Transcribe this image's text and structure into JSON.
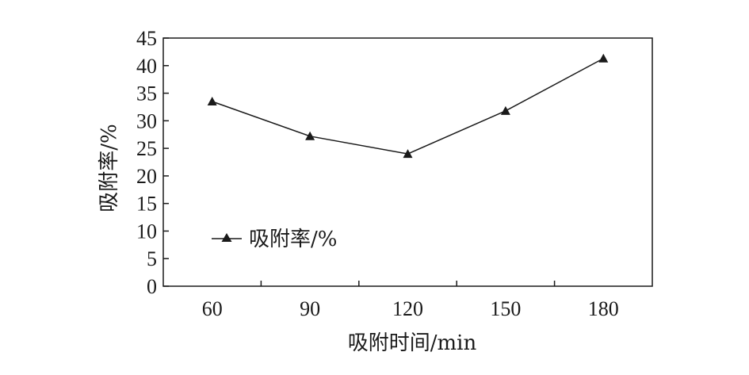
{
  "chart_data": {
    "type": "line",
    "categories": [
      "60",
      "90",
      "120",
      "150",
      "180"
    ],
    "x": [
      60,
      90,
      120,
      150,
      180
    ],
    "series": [
      {
        "name": "吸附率/%",
        "values": [
          33.5,
          27.2,
          24.0,
          31.8,
          41.3
        ],
        "marker": "triangle",
        "color": "#1a1a1a"
      }
    ],
    "title": "",
    "xlabel": "吸附时间/min",
    "ylabel": "吸附率/%",
    "xlim": [
      45,
      195
    ],
    "ylim": [
      0,
      45
    ],
    "yticks": [
      "0",
      "5",
      "10",
      "15",
      "20",
      "25",
      "30",
      "35",
      "40",
      "45"
    ],
    "grid": false,
    "legend": "inside-lower-left"
  }
}
